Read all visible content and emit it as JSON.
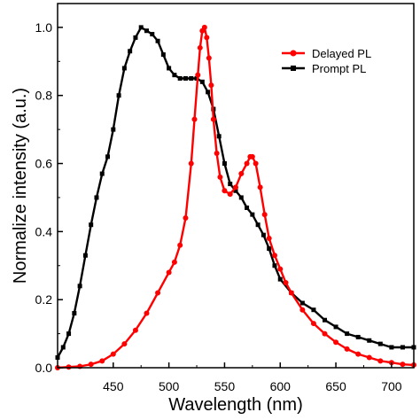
{
  "chart_data": {
    "type": "line",
    "xlabel": "Wavelength (nm)",
    "ylabel": "Normalize intensity (a.u.)",
    "xlim": [
      400,
      720
    ],
    "ylim": [
      0,
      1.07
    ],
    "xticks": [
      450,
      500,
      550,
      600,
      650,
      700
    ],
    "xtick_labels": [
      "450",
      "500",
      "550",
      "600",
      "650",
      "700"
    ],
    "yticks": [
      0.0,
      0.2,
      0.4,
      0.6,
      0.8,
      1.0
    ],
    "ytick_labels": [
      "0.0",
      "0.2",
      "0.4",
      "0.6",
      "0.8",
      "1.0"
    ],
    "grid": false,
    "legend_position": "top-right",
    "series": [
      {
        "name": "Delayed PL",
        "color": "#ff0000",
        "marker": "circle",
        "x": [
          400,
          410,
          420,
          430,
          440,
          450,
          460,
          470,
          480,
          490,
          500,
          505,
          510,
          515,
          520,
          523,
          526,
          528,
          530,
          532,
          534,
          536,
          538,
          540,
          543,
          546,
          550,
          555,
          560,
          565,
          570,
          573,
          575,
          578,
          582,
          586,
          590,
          595,
          600,
          605,
          610,
          620,
          630,
          640,
          650,
          660,
          670,
          680,
          690,
          700,
          710,
          720
        ],
        "y": [
          0.0,
          0.002,
          0.004,
          0.01,
          0.02,
          0.04,
          0.07,
          0.11,
          0.16,
          0.22,
          0.28,
          0.31,
          0.36,
          0.44,
          0.6,
          0.73,
          0.86,
          0.94,
          0.99,
          1.0,
          0.97,
          0.91,
          0.83,
          0.73,
          0.63,
          0.56,
          0.52,
          0.51,
          0.53,
          0.57,
          0.6,
          0.62,
          0.62,
          0.6,
          0.53,
          0.45,
          0.38,
          0.33,
          0.29,
          0.25,
          0.22,
          0.17,
          0.13,
          0.1,
          0.075,
          0.055,
          0.04,
          0.03,
          0.02,
          0.015,
          0.01,
          0.008
        ]
      },
      {
        "name": "Prompt PL",
        "color": "#000000",
        "marker": "square",
        "x": [
          400,
          405,
          410,
          415,
          420,
          425,
          430,
          435,
          440,
          445,
          450,
          455,
          460,
          465,
          470,
          475,
          480,
          485,
          490,
          495,
          500,
          505,
          510,
          515,
          520,
          525,
          530,
          535,
          540,
          545,
          550,
          555,
          560,
          565,
          570,
          575,
          580,
          585,
          590,
          595,
          600,
          610,
          620,
          630,
          640,
          650,
          660,
          670,
          680,
          690,
          700,
          710,
          720
        ],
        "y": [
          0.03,
          0.06,
          0.1,
          0.16,
          0.24,
          0.33,
          0.42,
          0.5,
          0.57,
          0.62,
          0.7,
          0.8,
          0.88,
          0.93,
          0.97,
          1.0,
          0.99,
          0.98,
          0.96,
          0.92,
          0.88,
          0.86,
          0.85,
          0.85,
          0.85,
          0.85,
          0.84,
          0.81,
          0.76,
          0.68,
          0.6,
          0.54,
          0.52,
          0.5,
          0.47,
          0.45,
          0.42,
          0.39,
          0.35,
          0.3,
          0.26,
          0.22,
          0.19,
          0.17,
          0.14,
          0.12,
          0.1,
          0.09,
          0.08,
          0.07,
          0.06,
          0.06,
          0.06
        ]
      }
    ]
  }
}
